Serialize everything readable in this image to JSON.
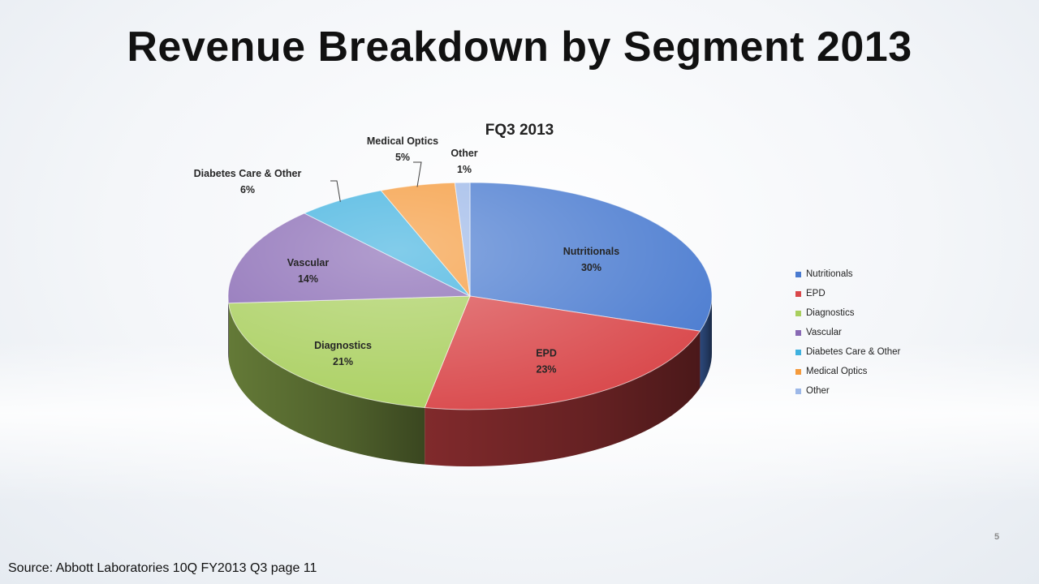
{
  "slide": {
    "title": "Revenue Breakdown by Segment 2013",
    "source": "Source: Abbott Laboratories 10Q FY2013 Q3 page 11",
    "page_number": "5"
  },
  "chart_data": {
    "type": "pie",
    "title": "FQ3 2013",
    "legend_position": "right",
    "labels": [
      "Nutritionals",
      "EPD",
      "Diagnostics",
      "Vascular",
      "Diabetes Care & Other",
      "Medical Optics",
      "Other"
    ],
    "values": [
      30,
      23,
      21,
      14,
      6,
      5,
      1
    ],
    "value_labels": [
      "30%",
      "23%",
      "21%",
      "14%",
      "6%",
      "5%",
      "1%"
    ],
    "colors": [
      "#4a7bd0",
      "#d9474a",
      "#a9cf5e",
      "#8869b4",
      "#3fb1df",
      "#f59a3c",
      "#9db8e8"
    ]
  }
}
